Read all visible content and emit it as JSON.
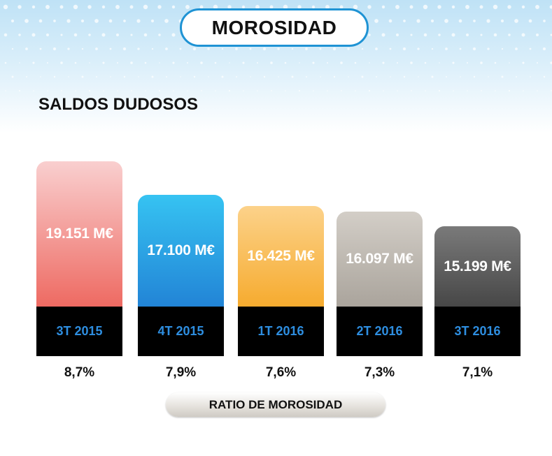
{
  "header": {
    "title": "MOROSIDAD"
  },
  "chart_data": {
    "type": "bar",
    "title": "SALDOS DUDOSOS",
    "categories": [
      "3T 2015",
      "4T 2015",
      "1T 2016",
      "2T 2016",
      "3T 2016"
    ],
    "values": [
      19151,
      17100,
      16425,
      16097,
      15199
    ],
    "unit": "M€",
    "value_labels": [
      "19.151 M€",
      "17.100 M€",
      "16.425 M€",
      "16.097 M€",
      "15.199 M€"
    ],
    "secondary_label": "RATIO DE MOROSIDAD",
    "secondary_values": [
      "8,7%",
      "7,9%",
      "7,6%",
      "7,3%",
      "7,1%"
    ],
    "bar_gradients": [
      [
        "#f9cfcf",
        "#ee6a62"
      ],
      [
        "#36c3f2",
        "#2284d6"
      ],
      [
        "#fcd28a",
        "#f6ab2f"
      ],
      [
        "#d3cec7",
        "#aaa49c"
      ],
      [
        "#7a7a7a",
        "#474747"
      ]
    ]
  }
}
